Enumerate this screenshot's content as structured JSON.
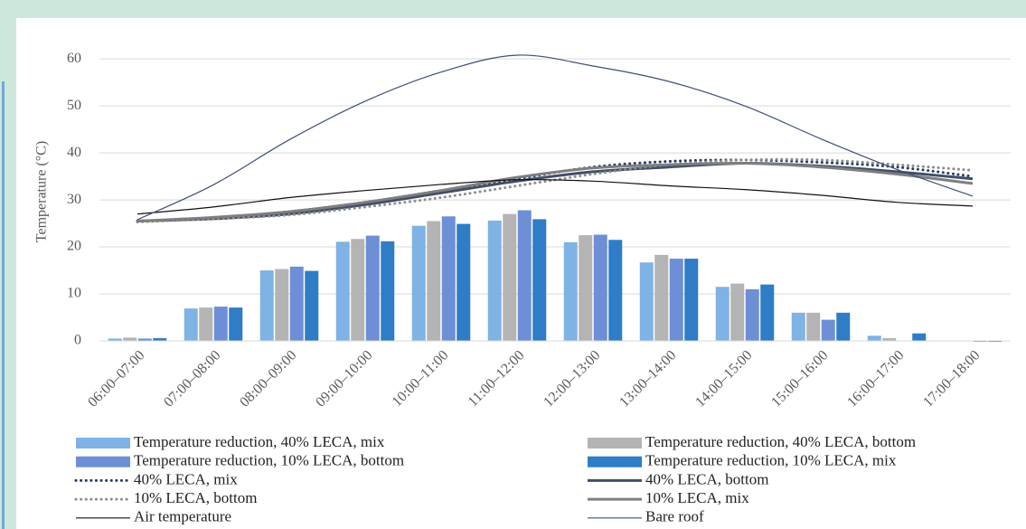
{
  "chart_data": {
    "type": "combo",
    "ylabel": "Temperature (°C)",
    "categories": [
      "06:00–07:00",
      "07:00–08:00",
      "08:00–09:00",
      "09:00–10:00",
      "10:00–11:00",
      "11:00–12:00",
      "12:00–13:00",
      "13:00–14:00",
      "14:00–15:00",
      "15:00–16:00",
      "16:00–17:00",
      "17:00–18:00"
    ],
    "ylim": [
      0,
      66
    ],
    "yticks": [
      0,
      10,
      20,
      30,
      40,
      50,
      60
    ],
    "grid": true,
    "series": [
      {
        "name": "Temperature reduction, 40% LECA, mix",
        "type": "bar",
        "color": "#7fb2e5",
        "values": [
          0.5,
          6.9,
          15.0,
          21.1,
          24.5,
          25.6,
          21.0,
          16.7,
          11.5,
          6.0,
          1.1,
          -0.1
        ]
      },
      {
        "name": "Temperature reduction, 40% LECA, bottom",
        "type": "bar",
        "color": "#b4b4b4",
        "values": [
          0.7,
          7.1,
          15.3,
          21.7,
          25.5,
          27.0,
          22.5,
          18.3,
          12.2,
          6.0,
          0.6,
          -0.1
        ]
      },
      {
        "name": "Temperature reduction, 10% LECA, bottom",
        "type": "bar",
        "color": "#6e8fd6",
        "values": [
          0.5,
          7.3,
          15.8,
          22.4,
          26.5,
          27.8,
          22.6,
          17.5,
          11.0,
          4.5,
          -0.1,
          -0.2
        ]
      },
      {
        "name": "Temperature reduction, 10% LECA, mix",
        "type": "bar",
        "color": "#2e7dc6",
        "values": [
          0.6,
          7.1,
          14.9,
          21.2,
          24.9,
          25.9,
          21.5,
          17.5,
          12.0,
          6.0,
          1.6,
          -0.2
        ]
      },
      {
        "name": "40% LECA, mix",
        "type": "line",
        "dash": "dotted",
        "width": 3,
        "color": "#243b63",
        "values": [
          25.5,
          26.2,
          27.5,
          29.5,
          32.0,
          34.5,
          37.0,
          38.2,
          38.5,
          38.0,
          37.0,
          35.0
        ]
      },
      {
        "name": "40% LECA, bottom",
        "type": "line",
        "dash": "solid",
        "width": 3,
        "color": "#3f4f66",
        "values": [
          25.5,
          26.0,
          27.0,
          29.0,
          31.5,
          34.0,
          36.0,
          37.0,
          37.8,
          37.2,
          36.0,
          34.5
        ]
      },
      {
        "name": "10% LECA, bottom",
        "type": "line",
        "dash": "dotted",
        "width": 3,
        "color": "#8c8c8c",
        "values": [
          25.3,
          26.0,
          26.8,
          28.5,
          30.5,
          33.0,
          35.5,
          37.5,
          38.5,
          38.5,
          37.5,
          36.3
        ]
      },
      {
        "name": "10% LECA, mix",
        "type": "line",
        "dash": "solid",
        "width": 3,
        "color": "#7f7f7f",
        "values": [
          25.5,
          26.3,
          27.5,
          29.5,
          32.0,
          34.8,
          36.8,
          37.5,
          37.8,
          37.0,
          35.5,
          33.5
        ]
      },
      {
        "name": "Air temperature",
        "type": "line",
        "dash": "solid",
        "width": 1.2,
        "color": "#111111",
        "values": [
          27.0,
          28.5,
          30.5,
          32.0,
          33.3,
          34.3,
          34.0,
          33.0,
          32.2,
          31.0,
          29.5,
          28.7
        ]
      },
      {
        "name": "Bare roof",
        "type": "line",
        "dash": "solid",
        "width": 1.2,
        "color": "#3c5078",
        "values": [
          25.8,
          33.2,
          42.8,
          51.0,
          57.2,
          60.8,
          58.5,
          55.2,
          50.0,
          43.0,
          36.5,
          30.8
        ]
      }
    ]
  }
}
